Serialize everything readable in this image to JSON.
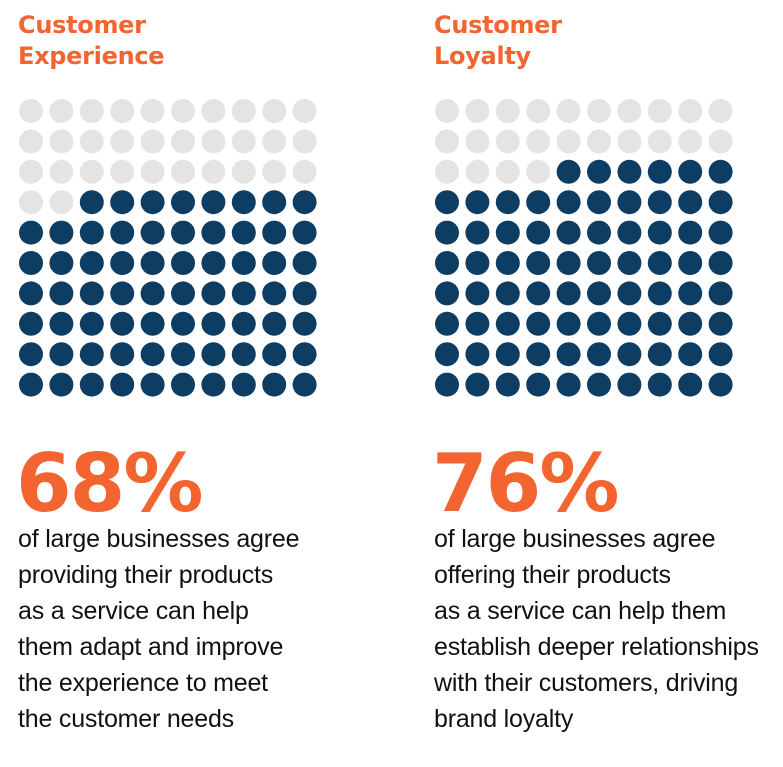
{
  "colors": {
    "accent": "#F26430",
    "filled": "#0E3D64",
    "empty": "#E4E4E4",
    "text": "#111111"
  },
  "chart_data": [
    {
      "type": "waffle",
      "grid": {
        "rows": 10,
        "cols": 10
      },
      "title_lines": [
        "Customer",
        "Experience"
      ],
      "value": 68,
      "total": 100,
      "percent_label": "68%",
      "description_lines": [
        "of large businesses agree",
        "providing their products",
        "as a service can help",
        "them adapt and improve",
        "the experience to meet",
        "the customer needs"
      ]
    },
    {
      "type": "waffle",
      "grid": {
        "rows": 10,
        "cols": 10
      },
      "title_lines": [
        "Customer",
        "Loyalty"
      ],
      "value": 76,
      "total": 100,
      "percent_label": "76%",
      "description_lines": [
        "of large businesses agree",
        "offering their products",
        "as a service can help them",
        "establish deeper relationships",
        "with their customers, driving",
        "brand loyalty"
      ]
    }
  ]
}
